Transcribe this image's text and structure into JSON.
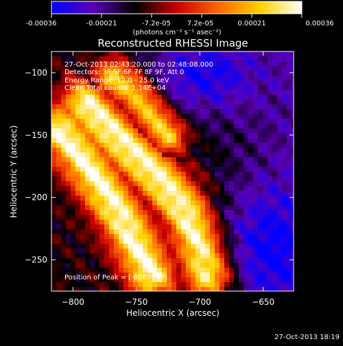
{
  "colorbar": {
    "tick_labels": [
      "-0.00036",
      "-0.00021",
      "-7.2e-05",
      "7.2e-05",
      "0.00021",
      "0.00036"
    ],
    "range": [
      -0.00036,
      0.00036
    ],
    "unit_label": "(photons cm⁻² s⁻¹ asec⁻²)",
    "colors": [
      "#0000ff",
      "#5a00b4",
      "#000000",
      "#c80000",
      "#ff6400",
      "#ffd200",
      "#ffffff"
    ]
  },
  "chart_data": {
    "type": "heatmap",
    "title": "Reconstructed RHESSI Image",
    "xlabel": "Heliocentric X (arcsec)",
    "ylabel": "Heliocentric Y (arcsec)",
    "xlim": [
      -817,
      -626
    ],
    "ylim": [
      -275,
      -83
    ],
    "x_ticks": [
      -800,
      -750,
      -700,
      -650
    ],
    "y_ticks": [
      -250,
      -200,
      -150,
      -100
    ],
    "x_tick_labels": [
      "−800",
      "−750",
      "−700",
      "−650"
    ],
    "y_tick_labels": [
      "−250",
      "−200",
      "−150",
      "−100"
    ],
    "peak": [
      -808,
      -147
    ],
    "ridges": [
      [
        [
          -811,
          -145
        ],
        [
          -795,
          -165
        ],
        [
          -778,
          -190
        ],
        [
          -762,
          -215
        ],
        [
          -748,
          -242
        ],
        [
          -738,
          -262
        ]
      ],
      [
        [
          -790,
          -125
        ],
        [
          -772,
          -145
        ],
        [
          -752,
          -165
        ],
        [
          -732,
          -185
        ],
        [
          -712,
          -210
        ],
        [
          -700,
          -238
        ],
        [
          -693,
          -262
        ]
      ],
      [
        [
          -768,
          -103
        ],
        [
          -752,
          -115
        ],
        [
          -740,
          -130
        ],
        [
          -725,
          -150
        ]
      ]
    ],
    "annotations": [
      "27-Oct-2013 02:43:20.000 to 02:48:08.000",
      "Detectors: 3F 5F 6F 7F 8F 9F, Att 0",
      "Energy Range: 12.0 - 25.0 keV",
      "Clean    Total counts: 1.14E+04",
      "Position of Peak = [-808,-147]"
    ]
  },
  "timestamp": "27-Oct-2013 18:19"
}
